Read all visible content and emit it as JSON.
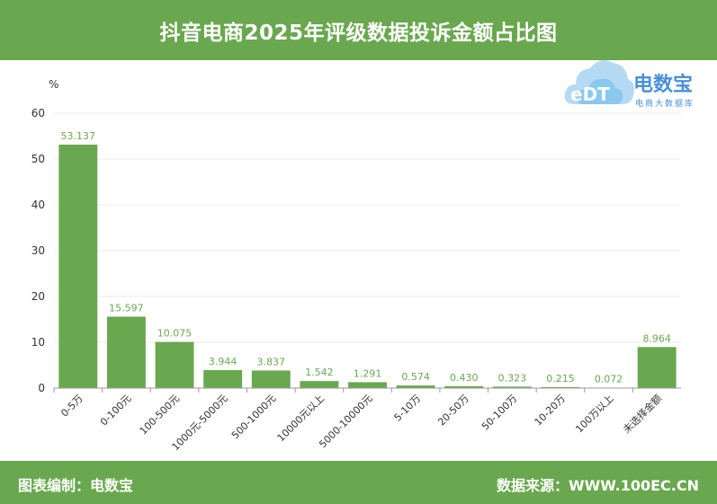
{
  "header": {
    "title": "抖音电商2025年评级数据投诉金额占比图"
  },
  "footer": {
    "left": "图表编制：电数宝",
    "right": "数据来源：WWW.100EC.CN"
  },
  "logo": {
    "cloud_text": "eDT",
    "brand": "电数宝",
    "subtitle": "电商大数据库"
  },
  "colors": {
    "bar": "#6aa84f",
    "header_bg": "#6aa84f",
    "label": "#6aa84f"
  },
  "chart_data": {
    "type": "bar",
    "title": "抖音电商2025年评级数据投诉金额占比图",
    "xlabel": "",
    "ylabel": "%",
    "ylim": [
      0,
      60
    ],
    "yticks": [
      0,
      10,
      20,
      30,
      40,
      50,
      60
    ],
    "grid": true,
    "categories": [
      "0-5万",
      "0-100元",
      "100-500元",
      "1000元-5000元",
      "500-1000元",
      "10000元以上",
      "5000-10000元",
      "5-10万",
      "20-50万",
      "50-100万",
      "10-20万",
      "100万以上",
      "未选择金额"
    ],
    "values": [
      53.137,
      15.597,
      10.075,
      3.944,
      3.837,
      1.542,
      1.291,
      0.574,
      0.43,
      0.323,
      0.215,
      0.072,
      8.964
    ],
    "value_labels": [
      "53.137",
      "15.597",
      "10.075",
      "3.944",
      "3.837",
      "1.542",
      "1.291",
      "0.574",
      "0.430",
      "0.323",
      "0.215",
      "0.072",
      "8.964"
    ]
  }
}
